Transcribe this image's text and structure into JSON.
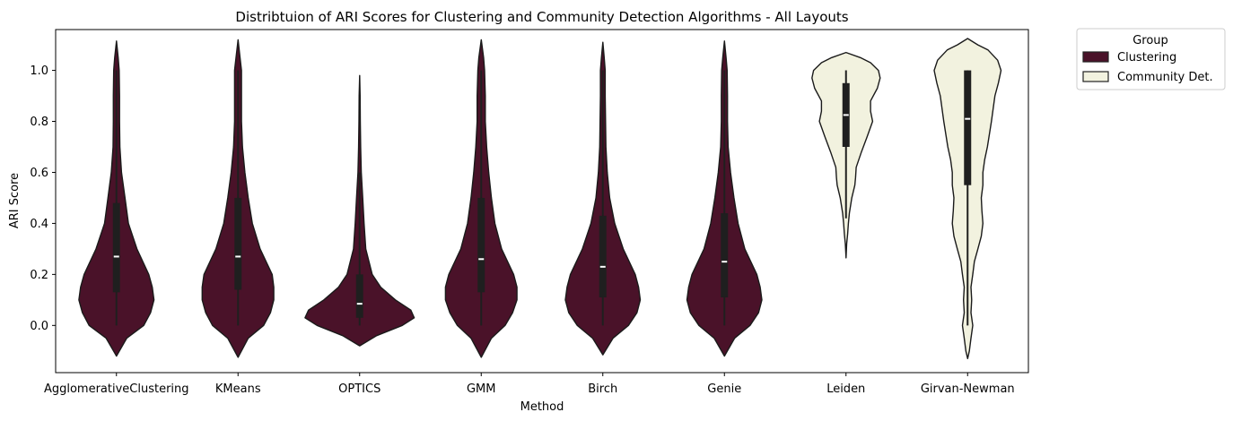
{
  "chart_data": {
    "type": "violin",
    "title": "Distribtuion of ARI Scores for Clustering and Community Detection Algorithms - All Layouts",
    "xlabel": "Method",
    "ylabel": "ARI Score",
    "ylim": [
      -0.185,
      1.16
    ],
    "yticks": [
      "0.0",
      "0.2",
      "0.4",
      "0.6",
      "0.8",
      "1.0"
    ],
    "ytick_values": [
      0.0,
      0.2,
      0.4,
      0.6,
      0.8,
      1.0
    ],
    "grid": false,
    "legend": {
      "title": "Group",
      "placement": "outside-top-right",
      "entries": [
        {
          "label": "Clustering",
          "color": "#4a1229"
        },
        {
          "label": "Community Det.",
          "color": "#f2f2df"
        }
      ]
    },
    "series": [
      {
        "name": "AgglomerativeClustering",
        "group": "Clustering",
        "q1": 0.13,
        "median": 0.27,
        "q3": 0.48,
        "whisker_low": 0.0,
        "whisker_high": 1.0,
        "profile": [
          [
            -0.12,
            0.0
          ],
          [
            -0.05,
            0.3
          ],
          [
            0.0,
            0.8
          ],
          [
            0.05,
            1.0
          ],
          [
            0.1,
            1.1
          ],
          [
            0.15,
            1.05
          ],
          [
            0.2,
            0.95
          ],
          [
            0.3,
            0.6
          ],
          [
            0.4,
            0.35
          ],
          [
            0.5,
            0.25
          ],
          [
            0.6,
            0.15
          ],
          [
            0.7,
            0.1
          ],
          [
            0.8,
            0.09
          ],
          [
            0.9,
            0.09
          ],
          [
            1.0,
            0.08
          ],
          [
            1.05,
            0.05
          ],
          [
            1.115,
            0.0
          ]
        ]
      },
      {
        "name": "KMeans",
        "group": "Clustering",
        "q1": 0.14,
        "median": 0.27,
        "q3": 0.5,
        "whisker_low": 0.0,
        "whisker_high": 1.0,
        "profile": [
          [
            -0.125,
            0.0
          ],
          [
            -0.05,
            0.3
          ],
          [
            0.0,
            0.75
          ],
          [
            0.05,
            0.95
          ],
          [
            0.1,
            1.05
          ],
          [
            0.15,
            1.05
          ],
          [
            0.2,
            1.0
          ],
          [
            0.3,
            0.65
          ],
          [
            0.4,
            0.42
          ],
          [
            0.5,
            0.3
          ],
          [
            0.6,
            0.2
          ],
          [
            0.7,
            0.13
          ],
          [
            0.8,
            0.1
          ],
          [
            0.9,
            0.1
          ],
          [
            1.0,
            0.1
          ],
          [
            1.05,
            0.06
          ],
          [
            1.12,
            0.0
          ]
        ]
      },
      {
        "name": "OPTICS",
        "group": "Clustering",
        "q1": 0.03,
        "median": 0.085,
        "q3": 0.2,
        "whisker_low": 0.0,
        "whisker_high": 0.6,
        "profile": [
          [
            -0.08,
            0.0
          ],
          [
            -0.04,
            0.5
          ],
          [
            0.0,
            1.25
          ],
          [
            0.03,
            1.6
          ],
          [
            0.06,
            1.5
          ],
          [
            0.1,
            1.05
          ],
          [
            0.15,
            0.62
          ],
          [
            0.2,
            0.37
          ],
          [
            0.3,
            0.18
          ],
          [
            0.4,
            0.13
          ],
          [
            0.5,
            0.09
          ],
          [
            0.6,
            0.05
          ],
          [
            0.7,
            0.03
          ],
          [
            0.8,
            0.02
          ],
          [
            0.9,
            0.015
          ],
          [
            0.98,
            0.0
          ]
        ]
      },
      {
        "name": "GMM",
        "group": "Clustering",
        "q1": 0.13,
        "median": 0.26,
        "q3": 0.5,
        "whisker_low": 0.0,
        "whisker_high": 1.0,
        "profile": [
          [
            -0.125,
            0.0
          ],
          [
            -0.05,
            0.3
          ],
          [
            0.0,
            0.7
          ],
          [
            0.05,
            0.92
          ],
          [
            0.1,
            1.05
          ],
          [
            0.15,
            1.05
          ],
          [
            0.2,
            0.95
          ],
          [
            0.3,
            0.6
          ],
          [
            0.4,
            0.4
          ],
          [
            0.5,
            0.3
          ],
          [
            0.6,
            0.22
          ],
          [
            0.7,
            0.16
          ],
          [
            0.8,
            0.12
          ],
          [
            0.9,
            0.12
          ],
          [
            1.0,
            0.1
          ],
          [
            1.05,
            0.07
          ],
          [
            1.12,
            0.0
          ]
        ]
      },
      {
        "name": "Birch",
        "group": "Clustering",
        "q1": 0.11,
        "median": 0.23,
        "q3": 0.43,
        "whisker_low": 0.0,
        "whisker_high": 1.0,
        "profile": [
          [
            -0.115,
            0.0
          ],
          [
            -0.05,
            0.3
          ],
          [
            0.0,
            0.75
          ],
          [
            0.05,
            1.0
          ],
          [
            0.1,
            1.1
          ],
          [
            0.15,
            1.05
          ],
          [
            0.2,
            0.95
          ],
          [
            0.3,
            0.6
          ],
          [
            0.4,
            0.35
          ],
          [
            0.5,
            0.2
          ],
          [
            0.6,
            0.13
          ],
          [
            0.7,
            0.09
          ],
          [
            0.8,
            0.08
          ],
          [
            0.9,
            0.07
          ],
          [
            1.0,
            0.07
          ],
          [
            1.05,
            0.04
          ],
          [
            1.11,
            0.0
          ]
        ]
      },
      {
        "name": "Genie",
        "group": "Clustering",
        "q1": 0.11,
        "median": 0.25,
        "q3": 0.44,
        "whisker_low": 0.0,
        "whisker_high": 1.0,
        "profile": [
          [
            -0.12,
            0.0
          ],
          [
            -0.05,
            0.3
          ],
          [
            0.0,
            0.75
          ],
          [
            0.05,
            1.0
          ],
          [
            0.1,
            1.1
          ],
          [
            0.15,
            1.05
          ],
          [
            0.2,
            0.95
          ],
          [
            0.3,
            0.6
          ],
          [
            0.4,
            0.4
          ],
          [
            0.5,
            0.28
          ],
          [
            0.6,
            0.18
          ],
          [
            0.7,
            0.11
          ],
          [
            0.8,
            0.09
          ],
          [
            0.9,
            0.09
          ],
          [
            1.0,
            0.08
          ],
          [
            1.05,
            0.05
          ],
          [
            1.115,
            0.0
          ]
        ]
      },
      {
        "name": "Leiden",
        "group": "Community Det.",
        "q1": 0.7,
        "median": 0.825,
        "q3": 0.95,
        "whisker_low": 0.42,
        "whisker_high": 1.0,
        "profile": [
          [
            0.265,
            0.0
          ],
          [
            0.32,
            0.02
          ],
          [
            0.36,
            0.05
          ],
          [
            0.4,
            0.07
          ],
          [
            0.44,
            0.1
          ],
          [
            0.5,
            0.17
          ],
          [
            0.55,
            0.26
          ],
          [
            0.58,
            0.28
          ],
          [
            0.62,
            0.3
          ],
          [
            0.68,
            0.45
          ],
          [
            0.74,
            0.62
          ],
          [
            0.8,
            0.78
          ],
          [
            0.84,
            0.72
          ],
          [
            0.88,
            0.72
          ],
          [
            0.93,
            0.92
          ],
          [
            0.97,
            1.0
          ],
          [
            1.0,
            0.95
          ],
          [
            1.03,
            0.72
          ],
          [
            1.05,
            0.42
          ],
          [
            1.07,
            0.0
          ]
        ]
      },
      {
        "name": "Girvan-Newman",
        "group": "Community Det.",
        "q1": 0.55,
        "median": 0.81,
        "q3": 1.0,
        "whisker_low": 0.0,
        "whisker_high": 1.0,
        "profile": [
          [
            -0.13,
            0.0
          ],
          [
            -0.1,
            0.05
          ],
          [
            -0.05,
            0.1
          ],
          [
            0.0,
            0.15
          ],
          [
            0.05,
            0.1
          ],
          [
            0.1,
            0.12
          ],
          [
            0.15,
            0.1
          ],
          [
            0.2,
            0.15
          ],
          [
            0.25,
            0.2
          ],
          [
            0.3,
            0.3
          ],
          [
            0.35,
            0.4
          ],
          [
            0.4,
            0.45
          ],
          [
            0.45,
            0.42
          ],
          [
            0.5,
            0.4
          ],
          [
            0.55,
            0.45
          ],
          [
            0.6,
            0.45
          ],
          [
            0.65,
            0.5
          ],
          [
            0.7,
            0.58
          ],
          [
            0.8,
            0.7
          ],
          [
            0.9,
            0.8
          ],
          [
            0.95,
            0.9
          ],
          [
            1.0,
            0.98
          ],
          [
            1.04,
            0.88
          ],
          [
            1.08,
            0.6
          ],
          [
            1.1,
            0.3
          ],
          [
            1.125,
            0.0
          ]
        ]
      }
    ]
  }
}
